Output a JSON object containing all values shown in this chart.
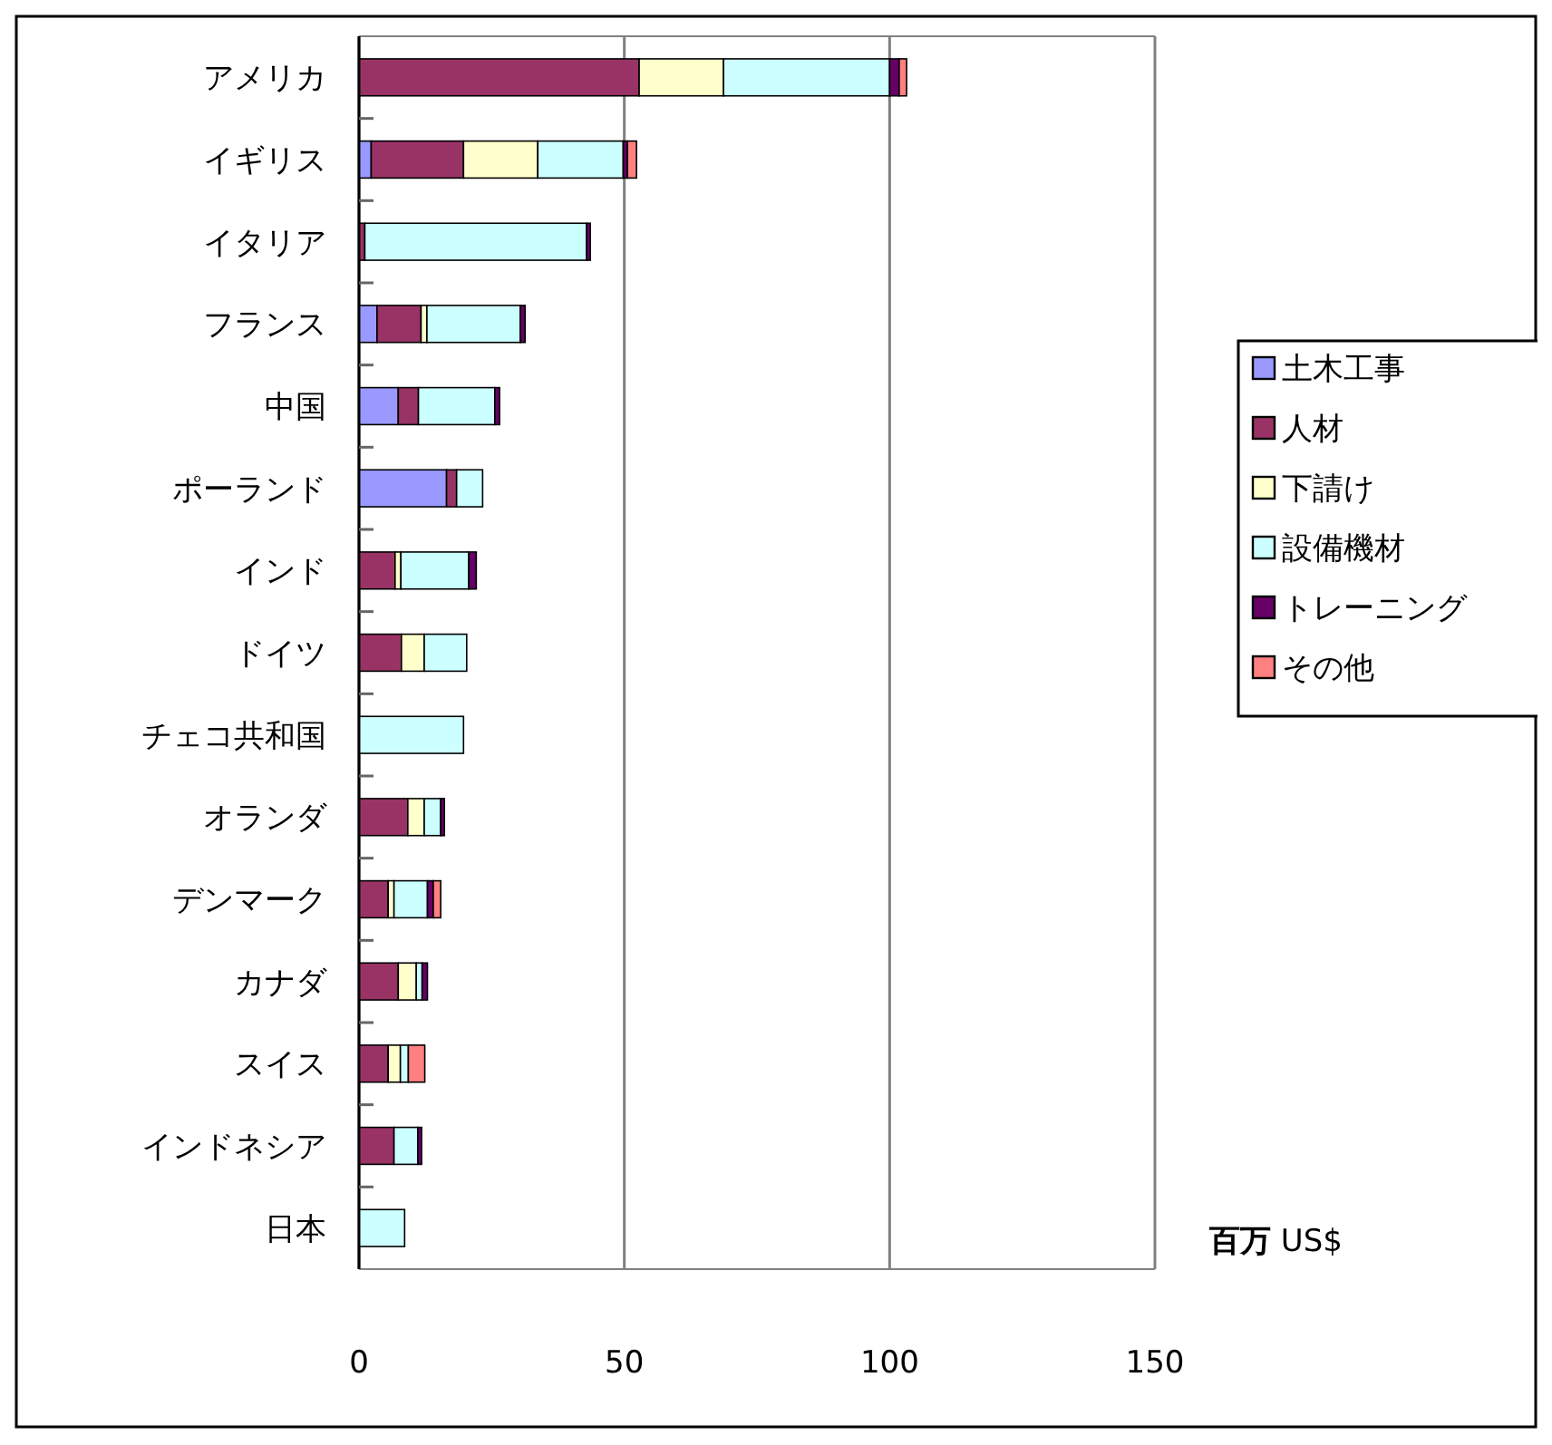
{
  "chart_data": {
    "type": "bar",
    "orientation": "horizontal",
    "stacked": true,
    "xlabel": "百万 US$",
    "categories": [
      "アメリカ",
      "イギリス",
      "イタリア",
      "フランス",
      "中国",
      "ポーランド",
      "インド",
      "ドイツ",
      "チェコ共和国",
      "オランダ",
      "デンマーク",
      "カナダ",
      "スイス",
      "インドネシア",
      "日本"
    ],
    "series": [
      {
        "name": "土木工事",
        "color": "#9999ff",
        "values": [
          0,
          2.3,
          0,
          3.4,
          7.4,
          16.5,
          0,
          0,
          0,
          0,
          0,
          0,
          0,
          0,
          0
        ]
      },
      {
        "name": "人材",
        "color": "#993366",
        "values": [
          52.8,
          17.4,
          1.1,
          8.3,
          3.8,
          1.9,
          6.8,
          8,
          0,
          9.2,
          5.5,
          7.4,
          5.5,
          6.6,
          0
        ]
      },
      {
        "name": "下請け",
        "color": "#ffffcc",
        "values": [
          15.9,
          14,
          0,
          1.1,
          0,
          0,
          1.1,
          4.3,
          0,
          3.1,
          1.1,
          3.4,
          2.3,
          0,
          0
        ]
      },
      {
        "name": "設備機材",
        "color": "#ccffff",
        "values": [
          31.3,
          16.1,
          41.8,
          17.6,
          14.4,
          4.9,
          12.8,
          8,
          19.7,
          3.1,
          6.3,
          1.1,
          1.5,
          4.5,
          8.6
        ]
      },
      {
        "name": "トレーニング",
        "color": "#660066",
        "values": [
          1.8,
          0.8,
          0.7,
          0.9,
          0.9,
          0,
          1.4,
          0,
          0,
          0.7,
          1.1,
          1,
          0,
          0.7,
          0
        ]
      },
      {
        "name": "その他",
        "color": "#ff8080",
        "values": [
          1.4,
          1.7,
          0,
          0,
          0,
          0,
          0,
          0,
          0,
          0,
          1.4,
          0,
          3.1,
          0,
          0
        ]
      }
    ],
    "xlim": [
      0,
      150
    ],
    "xticks": [
      0,
      50,
      100,
      150
    ],
    "grid": "x",
    "legend": "right"
  }
}
